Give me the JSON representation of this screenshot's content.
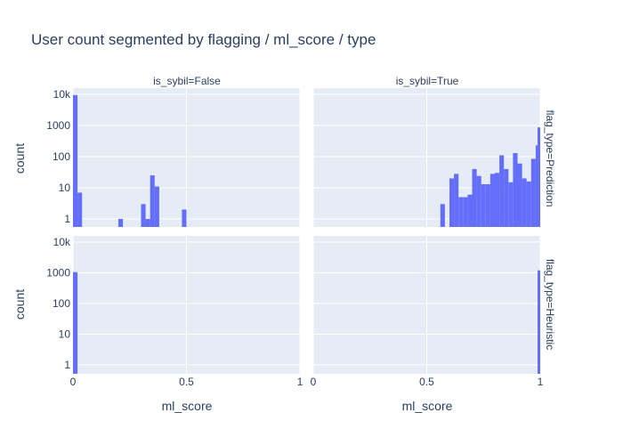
{
  "chart_data": {
    "type": "bar",
    "title": "User count segmented by flagging / ml_score / type",
    "xlabel": "ml_score",
    "ylabel": "count",
    "y_scale": "log",
    "y_ticks": [
      {
        "value": 1,
        "label": "1"
      },
      {
        "value": 10,
        "label": "10"
      },
      {
        "value": 100,
        "label": "100"
      },
      {
        "value": 1000,
        "label": "1000"
      },
      {
        "value": 10000,
        "label": "10k"
      }
    ],
    "x_ticks_left": [
      {
        "value": 0,
        "label": "0"
      },
      {
        "value": 0.5,
        "label": "0.5"
      },
      {
        "value": 1,
        "label": "1"
      }
    ],
    "x_ticks_right": [
      {
        "value": 0,
        "label": "0"
      },
      {
        "value": 0.5,
        "label": "0.5"
      },
      {
        "value": 1,
        "label": "1"
      }
    ],
    "bar_color": "#636efa",
    "plot_bg": "#e5ecf6",
    "grid": true,
    "column_labels": [
      "is_sybil=False",
      "is_sybil=True"
    ],
    "row_labels": [
      "flag_type=Prediction",
      "flag_type=Heuristic"
    ],
    "bin_width": 0.02,
    "panels": [
      {
        "column": "is_sybil=False",
        "row": "flag_type=Prediction",
        "bins": [
          {
            "x0": 0.0,
            "count": 9500
          },
          {
            "x0": 0.02,
            "count": 7
          },
          {
            "x0": 0.2,
            "count": 1
          },
          {
            "x0": 0.3,
            "count": 3
          },
          {
            "x0": 0.32,
            "count": 1
          },
          {
            "x0": 0.34,
            "count": 25
          },
          {
            "x0": 0.36,
            "count": 11
          },
          {
            "x0": 0.48,
            "count": 2
          }
        ]
      },
      {
        "column": "is_sybil=True",
        "row": "flag_type=Prediction",
        "bins": [
          {
            "x0": 0.56,
            "count": 3
          },
          {
            "x0": 0.6,
            "count": 20
          },
          {
            "x0": 0.62,
            "count": 28
          },
          {
            "x0": 0.64,
            "count": 5
          },
          {
            "x0": 0.66,
            "count": 5
          },
          {
            "x0": 0.68,
            "count": 6
          },
          {
            "x0": 0.7,
            "count": 40
          },
          {
            "x0": 0.72,
            "count": 24
          },
          {
            "x0": 0.74,
            "count": 13
          },
          {
            "x0": 0.76,
            "count": 13
          },
          {
            "x0": 0.78,
            "count": 28
          },
          {
            "x0": 0.8,
            "count": 30
          },
          {
            "x0": 0.82,
            "count": 110
          },
          {
            "x0": 0.84,
            "count": 40
          },
          {
            "x0": 0.86,
            "count": 15
          },
          {
            "x0": 0.88,
            "count": 130
          },
          {
            "x0": 0.9,
            "count": 60
          },
          {
            "x0": 0.92,
            "count": 20
          },
          {
            "x0": 0.94,
            "count": 16
          },
          {
            "x0": 0.96,
            "count": 85
          },
          {
            "x0": 0.98,
            "count": 230
          },
          {
            "x0": 1.0,
            "count": 870
          }
        ]
      },
      {
        "column": "is_sybil=False",
        "row": "flag_type=Heuristic",
        "bins": [
          {
            "x0": 0.0,
            "count": 1050
          }
        ]
      },
      {
        "column": "is_sybil=True",
        "row": "flag_type=Heuristic",
        "bins": [
          {
            "x0": 1.0,
            "count": 1200
          }
        ]
      }
    ]
  }
}
